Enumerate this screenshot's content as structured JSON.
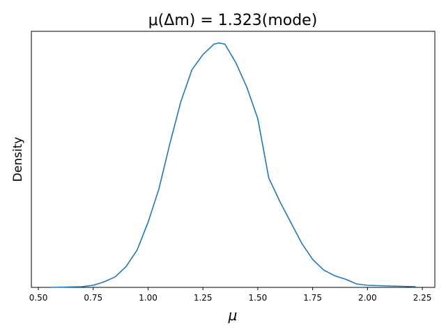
{
  "chart_data": {
    "type": "line",
    "title": "μ(Δm) = 1.323(mode)",
    "x_label": "μ",
    "y_label": "Density",
    "x": [
      0.55,
      0.7,
      0.75,
      0.8,
      0.85,
      0.9,
      0.95,
      1.0,
      1.05,
      1.1,
      1.15,
      1.2,
      1.25,
      1.3,
      1.323,
      1.35,
      1.4,
      1.45,
      1.5,
      1.55,
      1.6,
      1.65,
      1.7,
      1.75,
      1.8,
      1.85,
      1.9,
      1.95,
      2.0,
      2.1,
      2.22
    ],
    "series": [
      {
        "color": "#1f77b4",
        "values": [
          0.0,
          0.006,
          0.018,
          0.048,
          0.09,
          0.18,
          0.32,
          0.56,
          0.85,
          1.24,
          1.6,
          1.87,
          2.0,
          2.09,
          2.1,
          2.09,
          1.93,
          1.72,
          1.45,
          0.94,
          0.74,
          0.56,
          0.38,
          0.24,
          0.15,
          0.1,
          0.07,
          0.03,
          0.018,
          0.012,
          0.006
        ]
      }
    ],
    "xlim": [
      0.468,
      2.307
    ],
    "ylim": [
      0,
      2.2
    ],
    "xticks": [
      {
        "value": 0.5,
        "label": "0.50"
      },
      {
        "value": 0.75,
        "label": "0.75"
      },
      {
        "value": 1.0,
        "label": "1.00"
      },
      {
        "value": 1.25,
        "label": "1.25"
      },
      {
        "value": 1.5,
        "label": "1.50"
      },
      {
        "value": 1.75,
        "label": "1.75"
      },
      {
        "value": 2.0,
        "label": "2.00"
      },
      {
        "value": 2.25,
        "label": "2.25"
      }
    ]
  }
}
